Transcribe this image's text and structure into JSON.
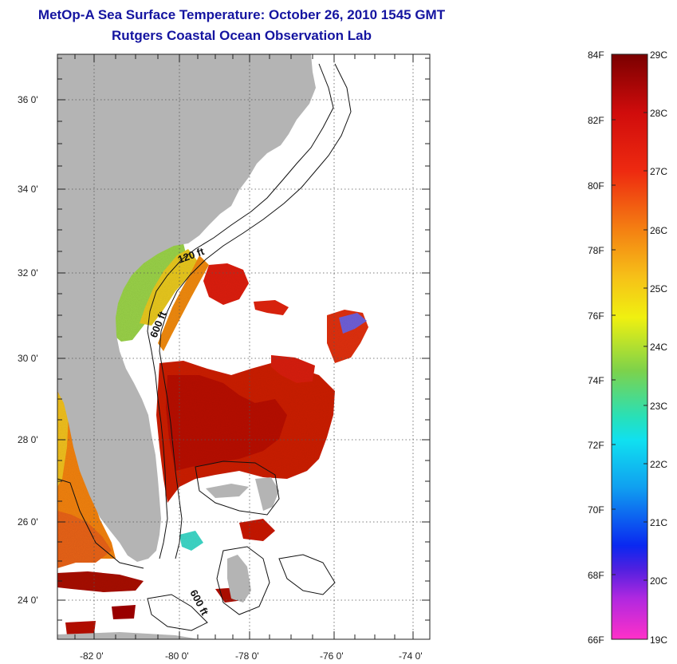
{
  "header": {
    "title": "MetOp-A Sea Surface Temperature:  October 26, 2010 1545 GMT",
    "subtitle": "Rutgers Coastal Ocean Observation Lab"
  },
  "map": {
    "lat_labels": [
      "36 0'",
      "34 0'",
      "32 0'",
      "30 0'",
      "28 0'",
      "26 0'",
      "24 0'"
    ],
    "lon_labels": [
      "-82 0'",
      "-80 0'",
      "-78 0'",
      "-76 0'",
      "-74 0'"
    ],
    "contour_labels": {
      "isobath_120": "120 ft",
      "isobath_600_north": "600 ft",
      "isobath_600_south": "600 ft"
    },
    "colors": {
      "land": "#b4b4b4",
      "ocean_nodata": "#ffffff",
      "sst_warm": "#cc1a0a",
      "sst_hot": "#e02010",
      "sst_orange": "#f07a10",
      "sst_yellow": "#e8d820",
      "sst_green": "#8ad050"
    }
  },
  "colorbar": {
    "fahrenheit_labels": [
      "84F",
      "82F",
      "80F",
      "78F",
      "76F",
      "74F",
      "72F",
      "70F",
      "68F",
      "66F"
    ],
    "celsius_labels": [
      "29C",
      "28C",
      "27C",
      "26C",
      "25C",
      "24C",
      "23C",
      "22C",
      "21C",
      "20C",
      "19C"
    ],
    "gradient_stops": [
      "#7a0000",
      "#ee1010",
      "#f26a10",
      "#f6c018",
      "#f2f20a",
      "#7ed24a",
      "#18e0d8",
      "#10a0f0",
      "#0a20f0",
      "#8020e0",
      "#ff30c8"
    ]
  }
}
